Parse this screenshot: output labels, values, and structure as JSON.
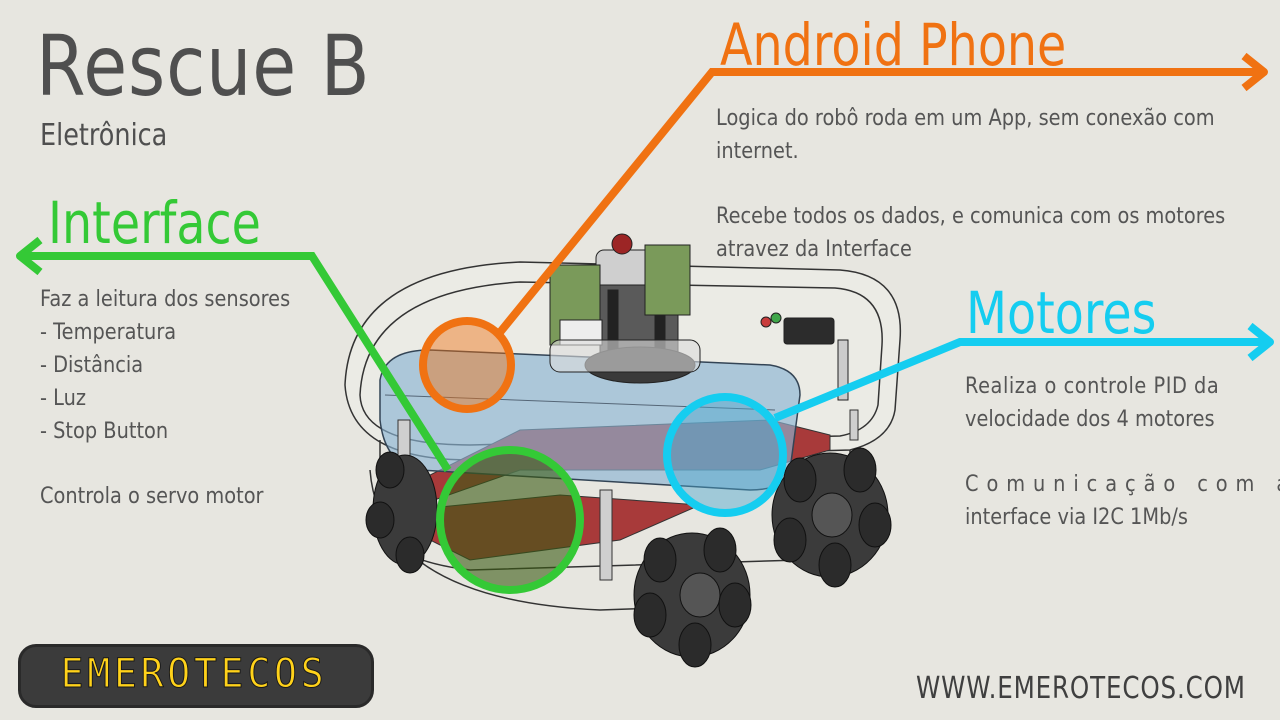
{
  "header": {
    "title": "Rescue B",
    "subtitle": "Eletrônica"
  },
  "android": {
    "heading": "Android Phone",
    "lines": [
      "Logica do robô roda em um App, sem conexão com",
      "internet.",
      "",
      "Recebe todos os dados, e comunica com os motores",
      "atravez da Interface"
    ],
    "color": "#f07212"
  },
  "interface": {
    "heading": "Interface",
    "lines": [
      "Faz a leitura dos sensores",
      "- Temperatura",
      "- Distância",
      "- Luz",
      "- Stop Button",
      "",
      "Controla o servo motor"
    ],
    "color": "#34c936"
  },
  "motores": {
    "heading": "Motores",
    "lines": [
      "Realiza o controle PID da",
      "velocidade dos 4 motores",
      "",
      "Comunicação com a",
      "interface via I2C 1Mb/s"
    ],
    "color": "#15cdf0"
  },
  "footer": {
    "logo_text": "EMEROTECOS",
    "website": "WWW.EMEROTECOS.COM"
  }
}
